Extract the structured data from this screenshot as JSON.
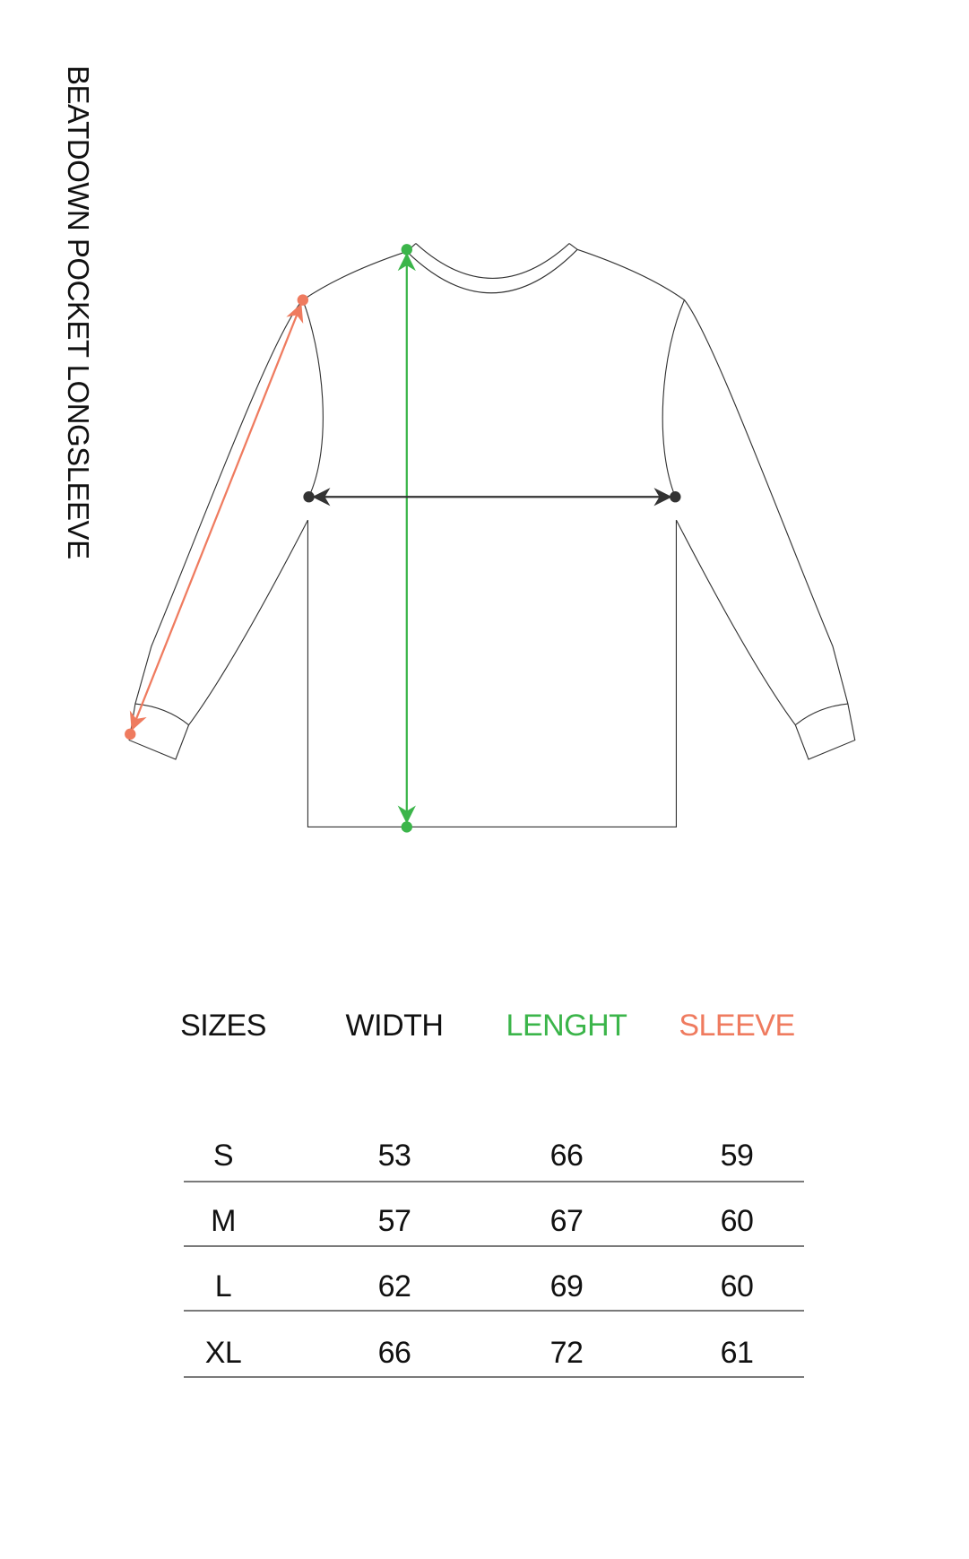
{
  "title": "BEATDOWN POCKET LONGSLEEVE",
  "colors": {
    "width": "#333333",
    "length": "#3bb54a",
    "sleeve": "#ef7b5f",
    "outline": "#333333"
  },
  "table": {
    "headers": [
      "SIZES",
      "WIDTH",
      "LENGHT",
      "SLEEVE"
    ],
    "rows": [
      [
        "S",
        "53",
        "66",
        "59"
      ],
      [
        "M",
        "57",
        "67",
        "60"
      ],
      [
        "L",
        "62",
        "69",
        "60"
      ],
      [
        "XL",
        "66",
        "72",
        "61"
      ]
    ]
  }
}
